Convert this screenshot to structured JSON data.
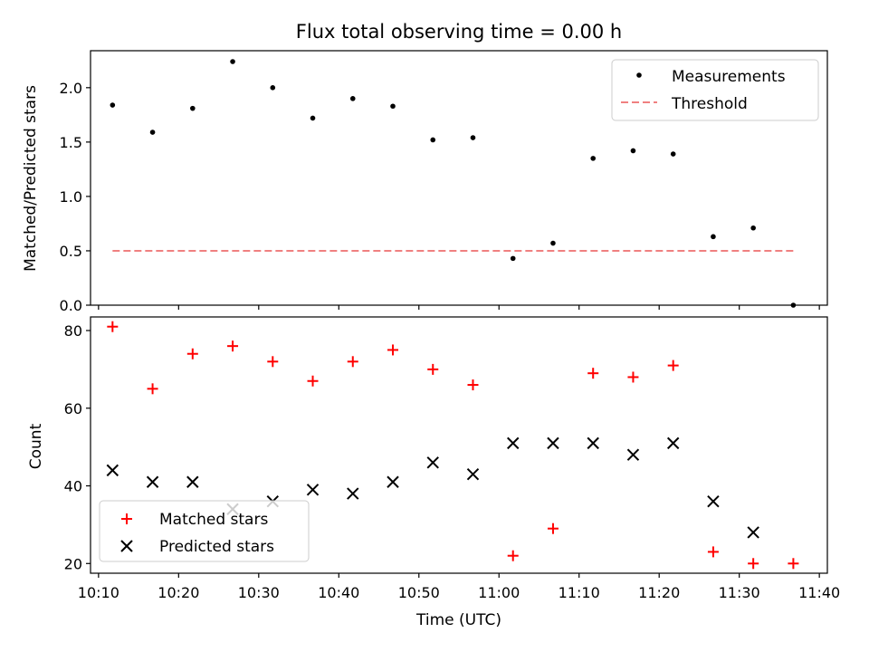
{
  "chart_data": {
    "type": "scatter",
    "title": "Flux total observing time = 0.00 h",
    "xlabel": "Time (UTC)",
    "x_ticks": [
      "10:10",
      "10:20",
      "10:30",
      "10:40",
      "10:50",
      "11:00",
      "11:10",
      "11:20",
      "11:30",
      "11:40"
    ],
    "x": [
      "10:11:45",
      "10:16:45",
      "10:21:45",
      "10:26:45",
      "10:31:45",
      "10:36:45",
      "10:41:45",
      "10:46:45",
      "10:51:45",
      "10:56:45",
      "11:01:45",
      "11:06:45",
      "11:11:45",
      "11:16:45",
      "11:21:45",
      "11:26:45",
      "11:31:45",
      "11:36:45"
    ],
    "xlim": [
      "10:09:00",
      "11:41:00"
    ],
    "panels": [
      {
        "ylabel": "Matched/Predicted stars",
        "ylim": [
          0,
          2.34
        ],
        "yticks": [
          "0.0",
          "0.5",
          "1.0",
          "1.5",
          "2.0"
        ],
        "legend_position": "top-right",
        "series": [
          {
            "name": "Measurements",
            "marker": "dot",
            "color": "#000000",
            "values": [
              1.84,
              1.59,
              1.81,
              2.24,
              2.0,
              1.72,
              1.9,
              1.83,
              1.52,
              1.54,
              0.43,
              0.57,
              1.35,
              1.42,
              1.39,
              0.63,
              0.71,
              0.0
            ]
          },
          {
            "name": "Threshold",
            "marker": "dashed-line",
            "color": "#f08080",
            "x_range": [
              "10:11:45",
              "11:36:45"
            ],
            "value": 0.5
          }
        ]
      },
      {
        "ylabel": "Count",
        "ylim": [
          17.5,
          83.5
        ],
        "yticks": [
          "20",
          "40",
          "60",
          "80"
        ],
        "legend_position": "bottom-left",
        "series": [
          {
            "name": "Matched stars",
            "marker": "plus",
            "color": "#ff0000",
            "values": [
              81,
              65,
              74,
              76,
              72,
              67,
              72,
              75,
              70,
              66,
              22,
              29,
              69,
              68,
              71,
              23,
              20,
              20
            ]
          },
          {
            "name": "Predicted stars",
            "marker": "x",
            "color": "#000000",
            "values": [
              44,
              41,
              41,
              34,
              36,
              39,
              38,
              41,
              46,
              43,
              51,
              51,
              51,
              48,
              51,
              36,
              28,
              null
            ]
          }
        ]
      }
    ]
  }
}
